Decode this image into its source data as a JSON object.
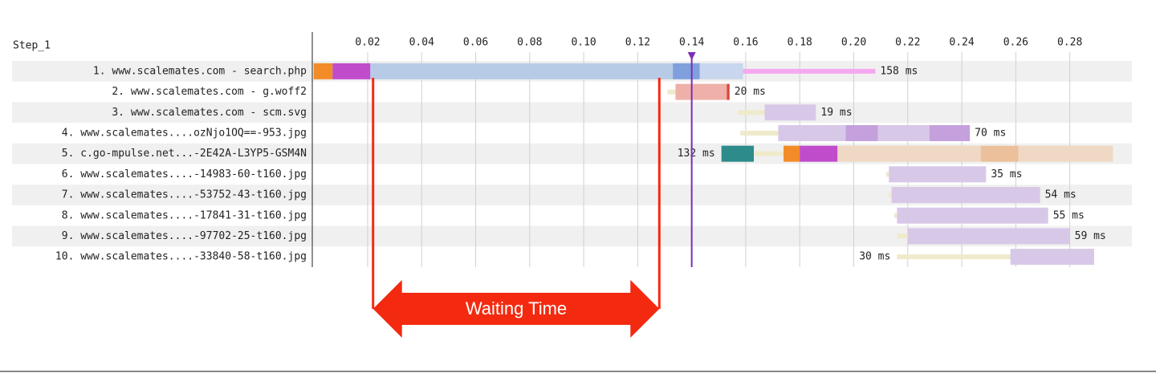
{
  "chart_data": {
    "type": "waterfall",
    "title": "Step_1",
    "xlim": [
      0,
      0.303
    ],
    "xticks": [
      0.02,
      0.04,
      0.06,
      0.08,
      {
        "value": 0.1,
        "label": "0.10"
      },
      0.12,
      0.14,
      0.16,
      0.18,
      {
        "value": 0.2,
        "label": "0.20"
      },
      0.22,
      0.24,
      0.26,
      0.28
    ],
    "grid": true,
    "categories": [
      "1. www.scalemates.com - search.php",
      "2. www.scalemates.com - g.woff2",
      "3. www.scalemates.com - scm.svg",
      "4. www.scalemates....ozNjo1OQ==-953.jpg",
      "5. c.go-mpulse.net...-2E42A-L3YP5-GSM4N",
      "6. www.scalemates....-14983-60-t160.jpg",
      "7. www.scalemates....-53752-43-t160.jpg",
      "8. www.scalemates....-17841-31-t160.jpg",
      "9. www.scalemates....-97702-25-t160.jpg",
      "10. www.scalemates....-33840-58-t160.jpg"
    ],
    "values": [
      0.158,
      0.02,
      0.019,
      0.07,
      0.132,
      0.035,
      0.054,
      0.055,
      0.059,
      0.03
    ],
    "value_labels": [
      "158 ms",
      "20 ms",
      "19 ms",
      "70 ms",
      "132 ms",
      "35 ms",
      "54 ms",
      "55 ms",
      "59 ms",
      "30 ms"
    ],
    "label_side": [
      "right",
      "right",
      "right",
      "right",
      "left",
      "right",
      "right",
      "right",
      "right",
      "left"
    ],
    "rows": [
      {
        "segments": [
          {
            "start": 0,
            "end": 0.007,
            "color": "#f28c28"
          },
          {
            "start": 0.007,
            "end": 0.021,
            "color": "#c04ccc"
          },
          {
            "start": 0.021,
            "end": 0.133,
            "color": "#b8cbe6"
          },
          {
            "start": 0.133,
            "end": 0.143,
            "color": "#7fa0dc"
          },
          {
            "start": 0.143,
            "end": 0.159,
            "color": "#c8d7ee"
          },
          {
            "start": 0.159,
            "end": 0.208,
            "color": "#f5a8f0",
            "thin": true
          }
        ]
      },
      {
        "segments": [
          {
            "start": 0.131,
            "end": 0.134,
            "color": "#efeacb",
            "thin": true
          },
          {
            "start": 0.134,
            "end": 0.153,
            "color": "#eeb0a8"
          },
          {
            "start": 0.153,
            "end": 0.154,
            "color": "#d9463a"
          }
        ]
      },
      {
        "segments": [
          {
            "start": 0.157,
            "end": 0.167,
            "color": "#efeacb",
            "thin": true
          },
          {
            "start": 0.167,
            "end": 0.186,
            "color": "#d8c8e8"
          }
        ]
      },
      {
        "segments": [
          {
            "start": 0.158,
            "end": 0.172,
            "color": "#efeacb",
            "thin": true
          },
          {
            "start": 0.172,
            "end": 0.197,
            "color": "#d8c8e8"
          },
          {
            "start": 0.197,
            "end": 0.209,
            "color": "#c4a0dc"
          },
          {
            "start": 0.209,
            "end": 0.228,
            "color": "#d8c8e8"
          },
          {
            "start": 0.228,
            "end": 0.243,
            "color": "#c4a0dc"
          }
        ]
      },
      {
        "segments": [
          {
            "start": 0.151,
            "end": 0.163,
            "color": "#2e8b8b"
          },
          {
            "start": 0.163,
            "end": 0.174,
            "color": "#efeacb",
            "thin": true
          },
          {
            "start": 0.174,
            "end": 0.18,
            "color": "#f28c28"
          },
          {
            "start": 0.18,
            "end": 0.194,
            "color": "#c04ccc"
          },
          {
            "start": 0.194,
            "end": 0.247,
            "color": "#efd9c4"
          },
          {
            "start": 0.247,
            "end": 0.261,
            "color": "#ebc09b"
          },
          {
            "start": 0.261,
            "end": 0.296,
            "color": "#efd9c4"
          }
        ]
      },
      {
        "segments": [
          {
            "start": 0.212,
            "end": 0.213,
            "color": "#efeacb",
            "thin": true
          },
          {
            "start": 0.213,
            "end": 0.249,
            "color": "#d8c8e8"
          }
        ]
      },
      {
        "segments": [
          {
            "start": 0.213,
            "end": 0.214,
            "color": "#efeacb",
            "thin": true
          },
          {
            "start": 0.214,
            "end": 0.269,
            "color": "#d8c8e8"
          }
        ]
      },
      {
        "segments": [
          {
            "start": 0.215,
            "end": 0.216,
            "color": "#efeacb",
            "thin": true
          },
          {
            "start": 0.216,
            "end": 0.272,
            "color": "#d8c8e8"
          }
        ]
      },
      {
        "segments": [
          {
            "start": 0.216,
            "end": 0.22,
            "color": "#efeacb",
            "thin": true
          },
          {
            "start": 0.22,
            "end": 0.28,
            "color": "#d8c8e8"
          }
        ]
      },
      {
        "segments": [
          {
            "start": 0.216,
            "end": 0.258,
            "color": "#efeacb",
            "thin": true
          },
          {
            "start": 0.258,
            "end": 0.289,
            "color": "#d8c8e8"
          }
        ]
      }
    ],
    "marker": {
      "value": 0.14,
      "color": "#7a2fb5"
    },
    "annotation": {
      "text": "Waiting Time",
      "start": 0.022,
      "end": 0.128,
      "color": "#f32a10"
    }
  }
}
